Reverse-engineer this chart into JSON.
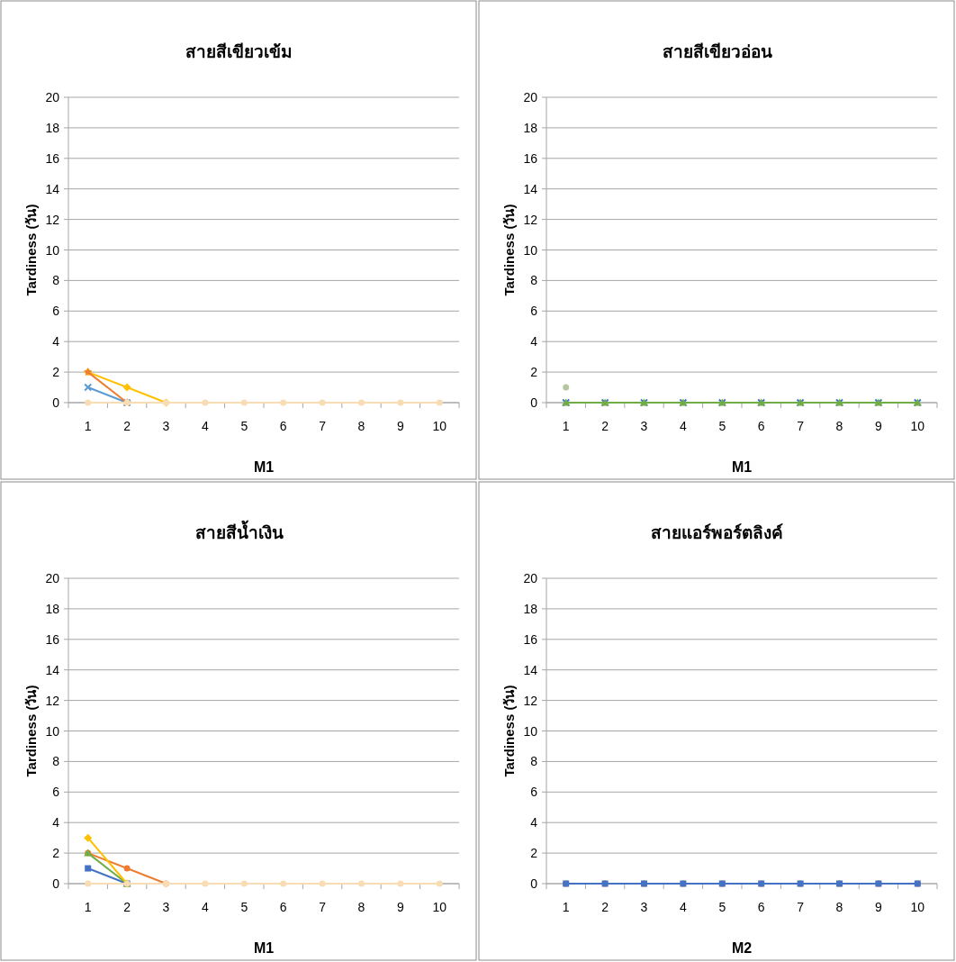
{
  "chart_data": [
    {
      "type": "line",
      "title": "สายสีเขียวเข้ม",
      "xlabel": "M1",
      "ylabel": "Tardiness (วัน)",
      "categories": [
        "1",
        "2",
        "3",
        "4",
        "5",
        "6",
        "7",
        "8",
        "9",
        "10"
      ],
      "ylim": [
        0,
        20
      ],
      "yticks": [
        0,
        2,
        4,
        6,
        8,
        10,
        12,
        14,
        16,
        18,
        20
      ],
      "grid": "y",
      "series": [
        {
          "color": "#5b9bd5",
          "marker": "cross",
          "values": [
            1,
            0,
            null,
            null,
            null,
            null,
            null,
            null,
            null,
            null
          ]
        },
        {
          "color": "#ffc000",
          "marker": "diamond",
          "values": [
            2,
            1,
            0,
            null,
            null,
            null,
            null,
            null,
            null,
            null
          ]
        },
        {
          "color": "#ed7d31",
          "marker": "star",
          "values": [
            2,
            0,
            null,
            null,
            null,
            null,
            null,
            null,
            null,
            null
          ]
        },
        {
          "color": "#f8dcb4",
          "marker": "circle",
          "values": [
            0,
            0,
            0,
            0,
            0,
            0,
            0,
            0,
            0,
            0
          ]
        }
      ]
    },
    {
      "type": "line",
      "title": "สายสีเขียวอ่อน",
      "xlabel": "M1",
      "ylabel": "Tardiness (วัน)",
      "categories": [
        "1",
        "2",
        "3",
        "4",
        "5",
        "6",
        "7",
        "8",
        "9",
        "10"
      ],
      "ylim": [
        0,
        20
      ],
      "yticks": [
        0,
        2,
        4,
        6,
        8,
        10,
        12,
        14,
        16,
        18,
        20
      ],
      "grid": "y",
      "series": [
        {
          "type": "scatter",
          "color": "#b4c7a0",
          "marker": "circle",
          "values": [
            1,
            null,
            null,
            null,
            null,
            null,
            null,
            null,
            null,
            null
          ]
        },
        {
          "type": "scatter",
          "color": "#4472c4",
          "marker": "cross",
          "values": [
            0,
            0,
            0,
            0,
            0,
            0,
            0,
            0,
            0,
            0
          ]
        },
        {
          "color": "#70ad47",
          "marker": "triangle",
          "values": [
            0,
            0,
            0,
            0,
            0,
            0,
            0,
            0,
            0,
            0
          ]
        }
      ]
    },
    {
      "type": "line",
      "title": "สายสีน้ำเงิน",
      "xlabel": "M1",
      "ylabel": "Tardiness (วัน)",
      "categories": [
        "1",
        "2",
        "3",
        "4",
        "5",
        "6",
        "7",
        "8",
        "9",
        "10"
      ],
      "ylim": [
        0,
        20
      ],
      "yticks": [
        0,
        2,
        4,
        6,
        8,
        10,
        12,
        14,
        16,
        18,
        20
      ],
      "grid": "y",
      "series": [
        {
          "color": "#4472c4",
          "marker": "square",
          "values": [
            1,
            0,
            null,
            null,
            null,
            null,
            null,
            null,
            null,
            null
          ]
        },
        {
          "color": "#ed7d31",
          "marker": "circle",
          "values": [
            2,
            1,
            0,
            null,
            null,
            null,
            null,
            null,
            null,
            null
          ]
        },
        {
          "color": "#70ad47",
          "marker": "triangle",
          "values": [
            2,
            0,
            null,
            null,
            null,
            null,
            null,
            null,
            null,
            null
          ]
        },
        {
          "color": "#ffc000",
          "marker": "diamond",
          "values": [
            3,
            0,
            null,
            null,
            null,
            null,
            null,
            null,
            null,
            null
          ]
        },
        {
          "color": "#f8dcb4",
          "marker": "circle",
          "values": [
            0,
            0,
            0,
            0,
            0,
            0,
            0,
            0,
            0,
            0
          ]
        }
      ]
    },
    {
      "type": "line",
      "title": "สายแอร์พอร์ตลิงค์",
      "xlabel": "M2",
      "ylabel": "Tardiness (วัน)",
      "categories": [
        "1",
        "2",
        "3",
        "4",
        "5",
        "6",
        "7",
        "8",
        "9",
        "10"
      ],
      "ylim": [
        0,
        20
      ],
      "yticks": [
        0,
        2,
        4,
        6,
        8,
        10,
        12,
        14,
        16,
        18,
        20
      ],
      "grid": "y",
      "series": [
        {
          "type": "scatter",
          "color": "#ed7d31",
          "marker": "circle",
          "values": [
            0,
            0,
            0,
            0,
            0,
            0,
            0,
            0,
            0,
            0
          ]
        },
        {
          "color": "#4472c4",
          "marker": "square",
          "values": [
            0,
            0,
            0,
            0,
            0,
            0,
            0,
            0,
            0,
            0
          ]
        }
      ]
    }
  ]
}
